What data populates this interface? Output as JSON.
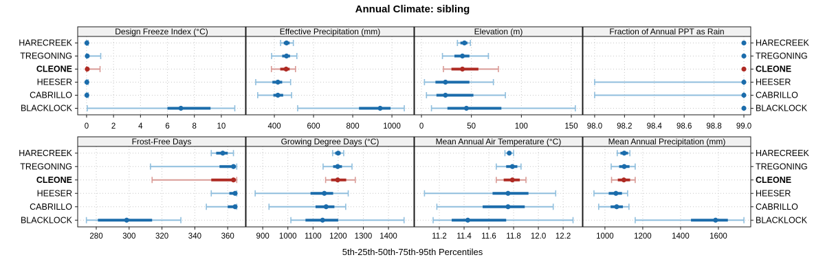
{
  "title": "Annual Climate: sibling",
  "xlabel": "5th-25th-50th-75th-95th Percentiles",
  "sites": [
    "HARECREEK",
    "TREGONING",
    "CLEONE",
    "HEESER",
    "CABRILLO",
    "BLACKLOCK"
  ],
  "highlight_site": "CLEONE",
  "colors": {
    "primary": "#1b6cab",
    "primary_light": "#8fbedd",
    "highlight": "#ae2a23",
    "highlight_light": "#d99a95",
    "grid": "#c6c6c6",
    "strip_bg": "#f1f1f1",
    "panel_bg": "#ffffff",
    "border": "#1a1a1a",
    "text": "#000000"
  },
  "chart_data": {
    "type": "dotplot-percentiles",
    "title": "Annual Climate: sibling",
    "xlabel": "5th-25th-50th-75th-95th Percentiles",
    "percentile_labels": [
      "5th",
      "25th",
      "50th",
      "75th",
      "95th"
    ],
    "legend_position": "none",
    "grid": "dotted",
    "panels": [
      {
        "title": "Design Freeze Index (°C)",
        "row": 0,
        "col": 0,
        "xlim": [
          -0.66,
          11.79
        ],
        "tick_values": [
          0,
          2,
          4,
          6,
          8,
          10
        ],
        "tick_labels": [
          "0",
          "2",
          "4",
          "6",
          "8",
          "10"
        ],
        "series": [
          {
            "site": "HARECREEK",
            "values": [
              0,
              0,
              0.02,
              0.05,
              0.12
            ]
          },
          {
            "site": "TREGONING",
            "values": [
              0,
              0,
              0.05,
              0.12,
              1.05
            ]
          },
          {
            "site": "CLEONE",
            "values": [
              0,
              0,
              0.05,
              0.15,
              1.0
            ]
          },
          {
            "site": "HEESER",
            "values": [
              0,
              0,
              0.02,
              0.05,
              0.12
            ]
          },
          {
            "site": "CABRILLO",
            "values": [
              0,
              0,
              0.02,
              0.05,
              0.12
            ]
          },
          {
            "site": "BLACKLOCK",
            "values": [
              0.05,
              6.0,
              7.0,
              9.2,
              11.0
            ]
          }
        ]
      },
      {
        "title": "Effective Precipitation (mm)",
        "row": 0,
        "col": 1,
        "xlim": [
          256,
          1112
        ],
        "tick_values": [
          400,
          600,
          800,
          1000
        ],
        "tick_labels": [
          "400",
          "600",
          "800",
          "1000"
        ],
        "series": [
          {
            "site": "HARECREEK",
            "values": [
              432,
              448,
              462,
              478,
              497
            ]
          },
          {
            "site": "TREGONING",
            "values": [
              386,
              440,
              462,
              480,
              515
            ]
          },
          {
            "site": "CLEONE",
            "values": [
              385,
              430,
              460,
              478,
              508
            ]
          },
          {
            "site": "HEESER",
            "values": [
              305,
              390,
              418,
              440,
              483
            ]
          },
          {
            "site": "CABRILLO",
            "values": [
              315,
              395,
              418,
              445,
              488
            ]
          },
          {
            "site": "BLACKLOCK",
            "values": [
              519,
              832,
              940,
              993,
              1063
            ]
          }
        ]
      },
      {
        "title": "Elevation (m)",
        "row": 0,
        "col": 2,
        "xlim": [
          -6.9,
          161
        ],
        "tick_values": [
          0,
          50,
          100,
          150
        ],
        "tick_labels": [
          "0",
          "50",
          "100",
          "150"
        ],
        "series": [
          {
            "site": "HARECREEK",
            "values": [
              36,
              39,
              43,
              46,
              49
            ]
          },
          {
            "site": "TREGONING",
            "values": [
              21,
              33,
              41,
              48,
              67
            ]
          },
          {
            "site": "CLEONE",
            "values": [
              22,
              30,
              41,
              57,
              77
            ]
          },
          {
            "site": "HEESER",
            "values": [
              3,
              14,
              24,
              48,
              72
            ]
          },
          {
            "site": "CABRILLO",
            "values": [
              5,
              15,
              24,
              52,
              84
            ]
          },
          {
            "site": "BLACKLOCK",
            "values": [
              10,
              26,
              45,
              80,
              154
            ]
          }
        ]
      },
      {
        "title": "Fraction of Annual PPT as Rain",
        "row": 0,
        "col": 3,
        "xlim": [
          97.922,
          99.046
        ],
        "tick_values": [
          98.0,
          98.2,
          98.4,
          98.6,
          98.8,
          99.0
        ],
        "tick_labels": [
          "98.0",
          "98.2",
          "98.4",
          "98.6",
          "98.8",
          "99.0"
        ],
        "series": [
          {
            "site": "HARECREEK",
            "values": [
              99,
              99,
              99,
              99,
              99
            ]
          },
          {
            "site": "TREGONING",
            "values": [
              99,
              99,
              99,
              99,
              99
            ]
          },
          {
            "site": "CLEONE",
            "values": [
              99,
              99,
              99,
              99,
              99
            ]
          },
          {
            "site": "HEESER",
            "values": [
              98,
              99,
              99,
              99,
              99
            ]
          },
          {
            "site": "CABRILLO",
            "values": [
              98,
              99,
              99,
              99,
              99
            ]
          },
          {
            "site": "BLACKLOCK",
            "values": [
              99,
              99,
              99,
              99,
              99
            ]
          }
        ]
      },
      {
        "title": "Frost-Free Days",
        "row": 1,
        "col": 0,
        "xlim": [
          268.7,
          370.8
        ],
        "tick_values": [
          280,
          300,
          320,
          340,
          360
        ],
        "tick_labels": [
          "280",
          "300",
          "320",
          "340",
          "360"
        ],
        "series": [
          {
            "site": "HARECREEK",
            "values": [
              350,
              353,
              357,
              360,
              363.5
            ]
          },
          {
            "site": "TREGONING",
            "values": [
              313,
              355,
              363.5,
              365,
              365.5
            ]
          },
          {
            "site": "CLEONE",
            "values": [
              314,
              350,
              363.5,
              365,
              365.5
            ]
          },
          {
            "site": "HEESER",
            "values": [
              350,
              361,
              364.5,
              365,
              365.5
            ]
          },
          {
            "site": "CABRILLO",
            "values": [
              347,
              360,
              364.5,
              365,
              365.5
            ]
          },
          {
            "site": "BLACKLOCK",
            "values": [
              274,
              281,
              298.5,
              314,
              331.5
            ]
          }
        ]
      },
      {
        "title": "Growing Degree Days (°C)",
        "row": 1,
        "col": 1,
        "xlim": [
          834,
          1501
        ],
        "tick_values": [
          900,
          1000,
          1100,
          1200,
          1300,
          1400
        ],
        "tick_labels": [
          "900",
          "1000",
          "1100",
          "1200",
          "1300",
          "1400"
        ],
        "series": [
          {
            "site": "HARECREEK",
            "values": [
              1178,
              1188,
              1200,
              1210,
              1222
            ]
          },
          {
            "site": "TREGONING",
            "values": [
              1140,
              1180,
              1198,
              1215,
              1255
            ]
          },
          {
            "site": "CLEONE",
            "values": [
              1150,
              1172,
              1198,
              1232,
              1268
            ]
          },
          {
            "site": "HEESER",
            "values": [
              870,
              1090,
              1145,
              1180,
              1240
            ]
          },
          {
            "site": "CABRILLO",
            "values": [
              925,
              1110,
              1152,
              1185,
              1230
            ]
          },
          {
            "site": "BLACKLOCK",
            "values": [
              1012,
              1070,
              1138,
              1200,
              1462
            ]
          }
        ]
      },
      {
        "title": "Mean Annual Air Temperature (°C)",
        "row": 1,
        "col": 2,
        "xlim": [
          11.0,
          12.355
        ],
        "tick_values": [
          11.2,
          11.4,
          11.6,
          11.8,
          12.0,
          12.2
        ],
        "tick_labels": [
          "11.2",
          "11.4",
          "11.6",
          "11.8",
          "12.0",
          "12.2"
        ],
        "series": [
          {
            "site": "HARECREEK",
            "values": [
              11.73,
              11.75,
              11.765,
              11.78,
              11.8
            ]
          },
          {
            "site": "TREGONING",
            "values": [
              11.66,
              11.74,
              11.79,
              11.83,
              11.86
            ]
          },
          {
            "site": "CLEONE",
            "values": [
              11.66,
              11.72,
              11.79,
              11.85,
              11.9
            ]
          },
          {
            "site": "HEESER",
            "values": [
              11.08,
              11.63,
              11.755,
              11.92,
              12.14
            ]
          },
          {
            "site": "CABRILLO",
            "values": [
              11.18,
              11.55,
              11.755,
              11.89,
              12.12
            ]
          },
          {
            "site": "BLACKLOCK",
            "values": [
              11.15,
              11.3,
              11.43,
              11.74,
              12.28
            ]
          }
        ]
      },
      {
        "title": "Mean Annual Precipitation (mm)",
        "row": 1,
        "col": 3,
        "xlim": [
          884,
          1771
        ],
        "tick_values": [
          1000,
          1200,
          1400,
          1600
        ],
        "tick_labels": [
          "1000",
          "1200",
          "1400",
          "1600"
        ],
        "series": [
          {
            "site": "HARECREEK",
            "values": [
              1065,
              1082,
              1102,
              1122,
              1132
            ]
          },
          {
            "site": "TREGONING",
            "values": [
              1033,
              1075,
              1102,
              1130,
              1160
            ]
          },
          {
            "site": "CLEONE",
            "values": [
              1035,
              1068,
              1100,
              1133,
              1160
            ]
          },
          {
            "site": "HEESER",
            "values": [
              942,
              1020,
              1058,
              1090,
              1120
            ]
          },
          {
            "site": "CABRILLO",
            "values": [
              967,
              1030,
              1062,
              1095,
              1127
            ]
          },
          {
            "site": "BLACKLOCK",
            "values": [
              1160,
              1455,
              1585,
              1650,
              1735
            ]
          }
        ]
      }
    ]
  }
}
